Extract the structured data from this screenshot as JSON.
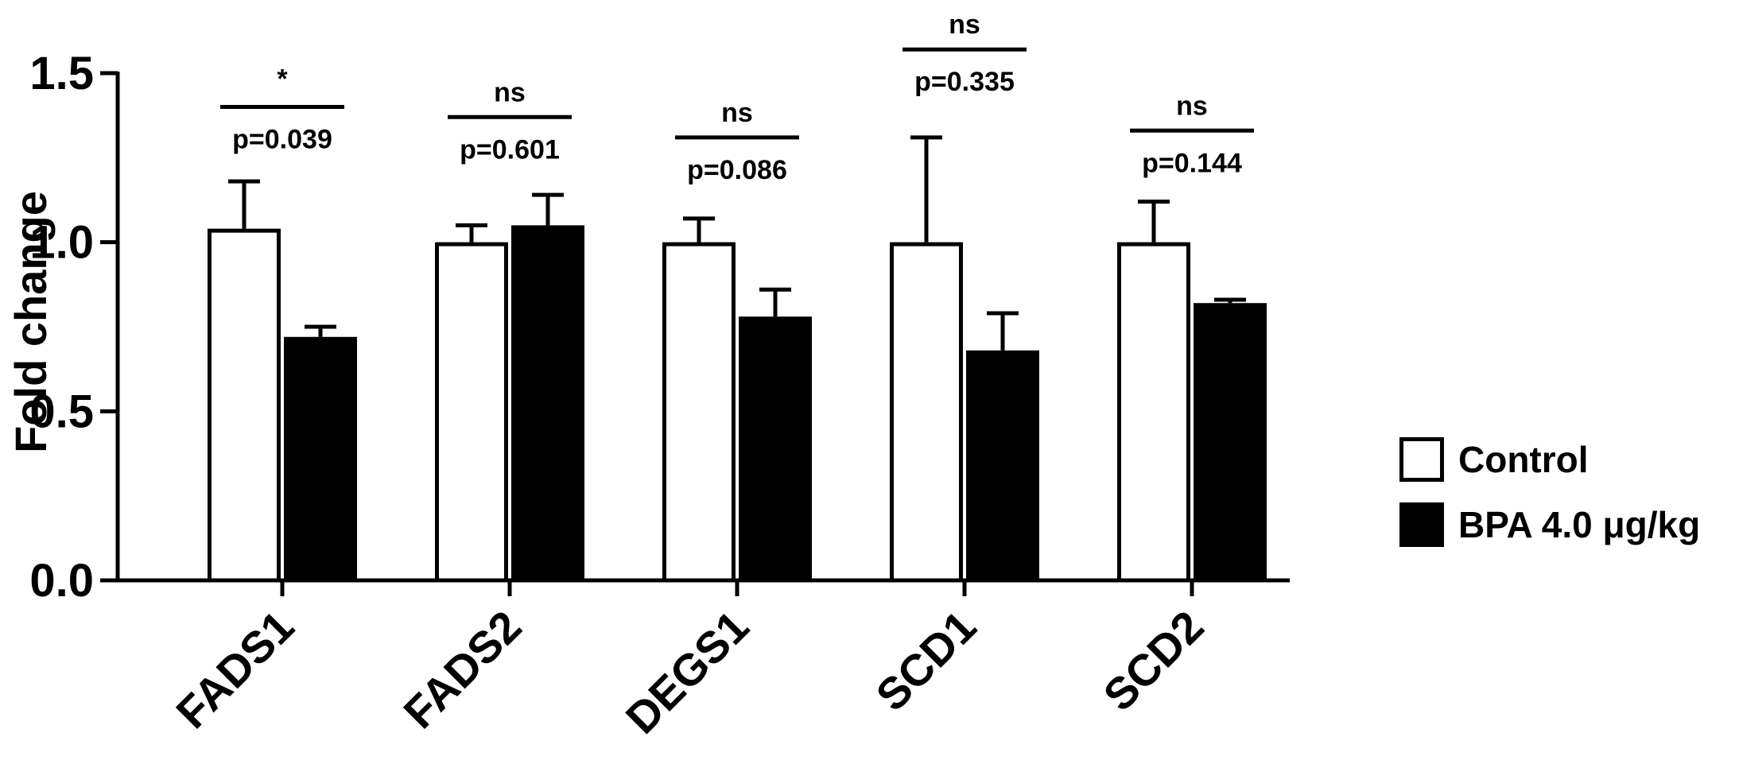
{
  "chart_data": {
    "type": "bar",
    "title": "",
    "xlabel": "",
    "ylabel": "Fold change",
    "ylim": [
      0,
      1.5
    ],
    "yticks": [
      0.0,
      0.5,
      1.0,
      1.5
    ],
    "ytick_labels": [
      "0.0",
      "0.5",
      "1.0",
      "1.5"
    ],
    "grid": false,
    "legend_position": "right",
    "categories": [
      "FADS1",
      "FADS2",
      "DEGS1",
      "SCD1",
      "SCD2"
    ],
    "series": [
      {
        "name": "Control",
        "color": "#ffffff",
        "edge": "#000000",
        "values": [
          1.04,
          1.0,
          1.0,
          1.0,
          1.0
        ],
        "errors": [
          0.14,
          0.05,
          0.07,
          0.31,
          0.12
        ]
      },
      {
        "name": "BPA 4.0 μg/kg",
        "color": "#000000",
        "edge": "#000000",
        "values": [
          0.72,
          1.05,
          0.78,
          0.68,
          0.82
        ],
        "errors": [
          0.03,
          0.09,
          0.08,
          0.11,
          0.01
        ]
      }
    ],
    "annotations": [
      {
        "category": "FADS1",
        "significance": "*",
        "p_value": "p=0.039",
        "level": 1.4
      },
      {
        "category": "FADS2",
        "significance": "ns",
        "p_value": "p=0.601",
        "level": 1.37
      },
      {
        "category": "DEGS1",
        "significance": "ns",
        "p_value": "p=0.086",
        "level": 1.31
      },
      {
        "category": "SCD1",
        "significance": "ns",
        "p_value": "p=0.335",
        "level": 1.57
      },
      {
        "category": "SCD2",
        "significance": "ns",
        "p_value": "p=0.144",
        "level": 1.33
      }
    ]
  }
}
